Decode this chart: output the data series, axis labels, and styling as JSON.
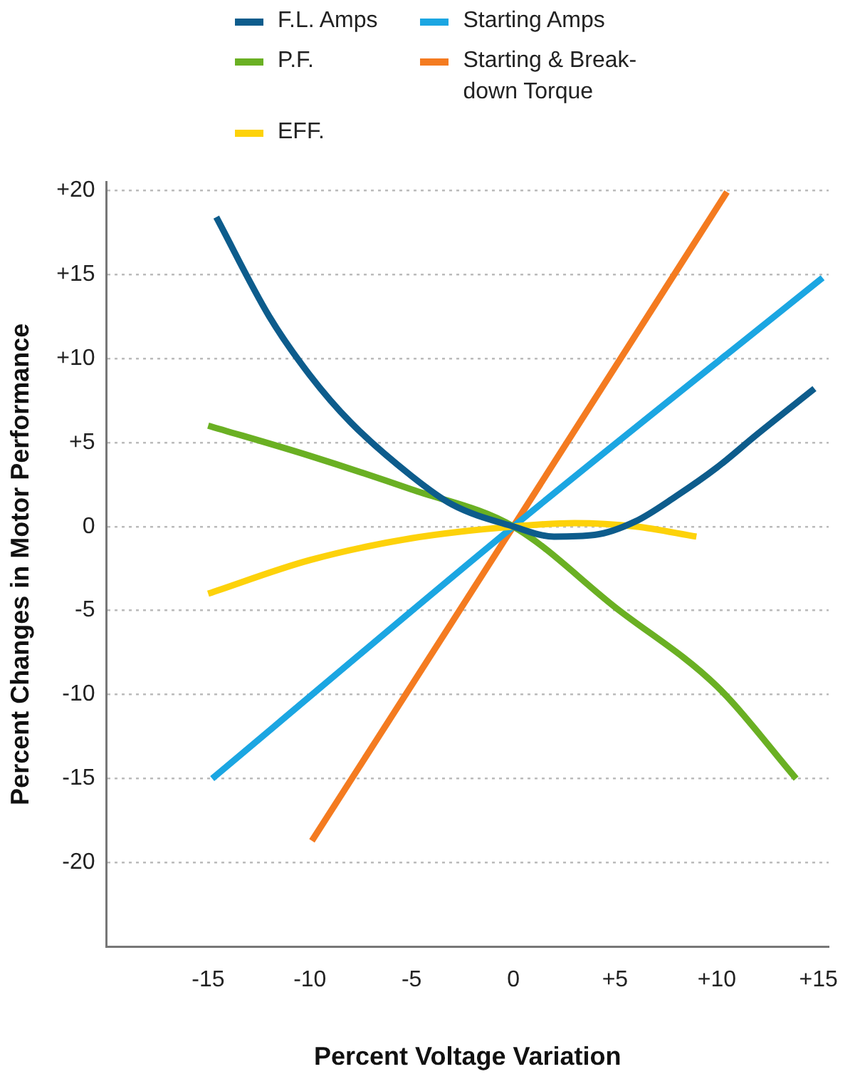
{
  "chart_data": {
    "type": "line",
    "xlabel": "Percent Voltage Variation",
    "ylabel": "Percent Changes in Motor Performance",
    "xlim": [
      -20,
      15.5
    ],
    "ylim": [
      -25,
      20.5
    ],
    "xticks": [
      -15,
      -10,
      -5,
      0,
      {
        "value": 5,
        "label": "+5"
      },
      {
        "value": 10,
        "label": "+10"
      },
      {
        "value": 15,
        "label": "+15"
      }
    ],
    "yticks": [
      -20,
      -15,
      -10,
      -5,
      0,
      {
        "value": 5,
        "label": "+5"
      },
      {
        "value": 10,
        "label": "+10"
      },
      {
        "value": 15,
        "label": "+15"
      },
      {
        "value": 20,
        "label": "+20"
      }
    ],
    "grid": "y",
    "legend": "top",
    "marker": "none",
    "line_style": "solid",
    "series": [
      {
        "name": "F.L. Amps",
        "color": "#0d5c8c",
        "x": [
          -14.6,
          -12,
          -10,
          -8,
          -5,
          -3,
          0,
          2,
          4,
          6,
          8,
          10,
          12,
          14.8
        ],
        "values": [
          18.4,
          12.5,
          9,
          6.2,
          3,
          1.3,
          0,
          -0.6,
          -0.5,
          0.3,
          1.8,
          3.5,
          5.5,
          8.2
        ]
      },
      {
        "name": "P.F.",
        "color": "#6ab023",
        "x": [
          -15,
          -10,
          -5,
          0,
          5,
          10,
          13.9
        ],
        "values": [
          6,
          4.2,
          2.2,
          0,
          -4.8,
          -9.5,
          -15
        ]
      },
      {
        "name": "EFF.",
        "color": "#fdd20a",
        "x": [
          -15,
          -10,
          -5,
          0,
          3,
          6,
          9
        ],
        "values": [
          -4,
          -2,
          -0.7,
          0,
          0.2,
          0,
          -0.6
        ]
      },
      {
        "name": "Starting Amps",
        "color": "#1ba6e2",
        "x": [
          -14.8,
          0,
          15.2
        ],
        "values": [
          -15,
          0,
          14.8
        ]
      },
      {
        "name": "Starting & Break-down Torque",
        "color": "#f47b20",
        "x": [
          -9.9,
          0,
          10.5
        ],
        "values": [
          -18.7,
          0,
          19.9
        ]
      }
    ]
  }
}
